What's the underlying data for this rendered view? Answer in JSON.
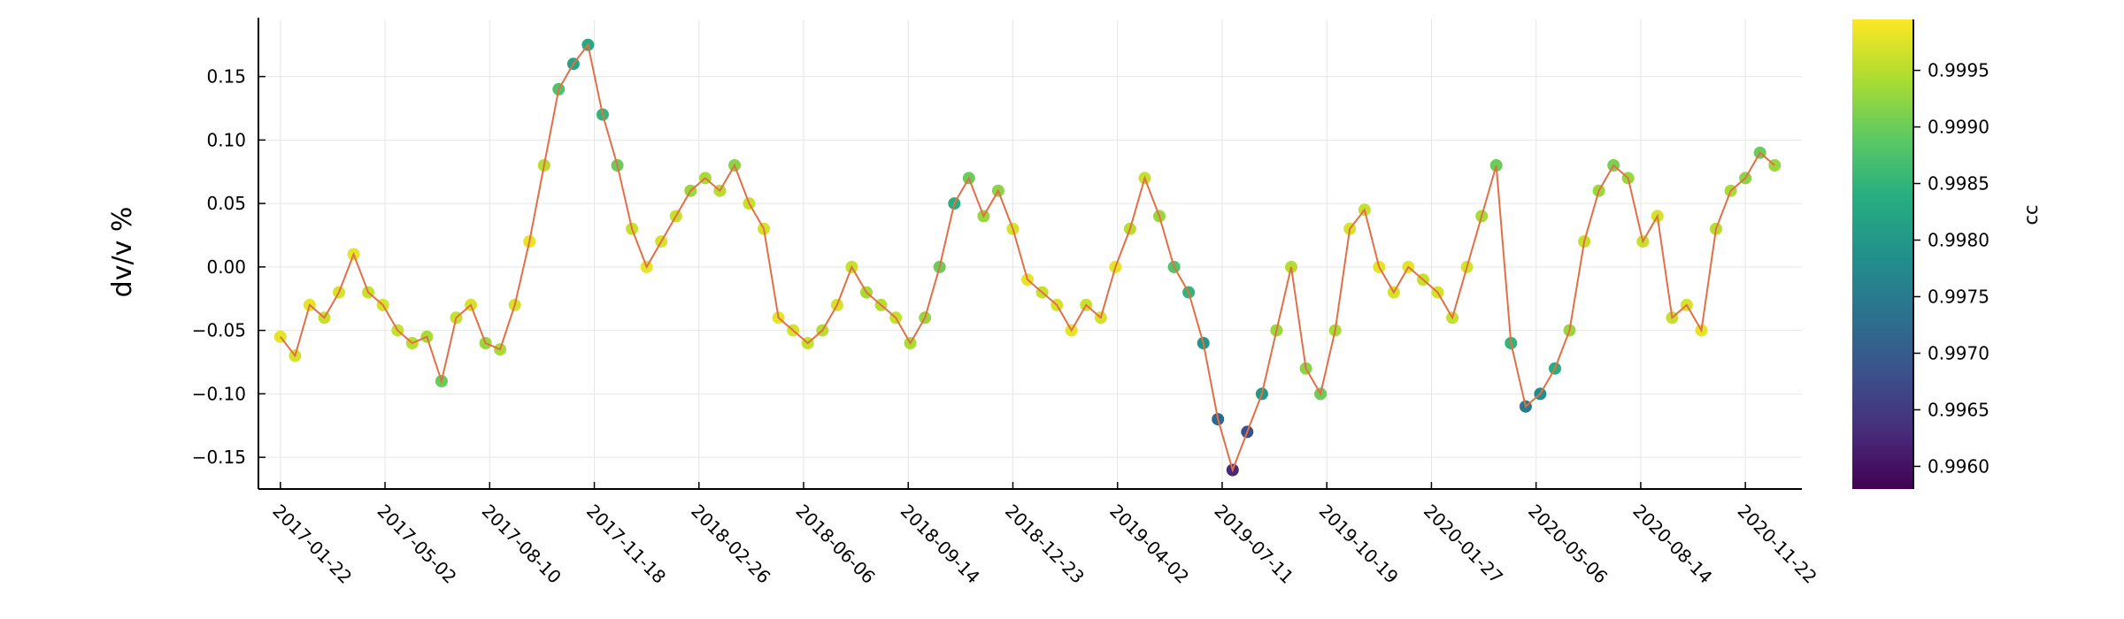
{
  "chart_data": {
    "type": "scatter",
    "title": "",
    "xlabel": "",
    "ylabel": "dv/v %",
    "grid": true,
    "legend": "none",
    "x_tick_labels": [
      "2017-01-22",
      "2017-05-02",
      "2017-08-10",
      "2017-11-18",
      "2018-02-26",
      "2018-06-06",
      "2018-09-14",
      "2018-12-23",
      "2019-04-02",
      "2019-07-11",
      "2019-10-19",
      "2020-01-27",
      "2020-05-06",
      "2020-08-14",
      "2020-11-22"
    ],
    "x_range": [
      "2017-01-01",
      "2021-01-15"
    ],
    "ylim": [
      -0.175,
      0.195
    ],
    "y_ticks": [
      -0.15,
      -0.1,
      -0.05,
      0.0,
      0.05,
      0.1,
      0.15
    ],
    "y_tick_labels": [
      "−0.15",
      "−0.10",
      "−0.05",
      "0.00",
      "0.05",
      "0.10",
      "0.15"
    ],
    "line_color": "#e26f46",
    "series": [
      {
        "x": [
          "2017-01-22",
          "2017-02-05",
          "2017-02-19",
          "2017-03-05",
          "2017-03-19",
          "2017-04-02",
          "2017-04-16",
          "2017-04-30",
          "2017-05-14",
          "2017-05-28",
          "2017-06-11",
          "2017-06-25",
          "2017-07-09",
          "2017-07-23",
          "2017-08-06",
          "2017-08-20",
          "2017-09-03",
          "2017-09-17",
          "2017-10-01",
          "2017-10-15",
          "2017-10-29",
          "2017-11-12",
          "2017-11-26",
          "2017-12-10",
          "2017-12-24",
          "2018-01-07",
          "2018-01-21",
          "2018-02-04",
          "2018-02-18",
          "2018-03-04",
          "2018-03-18",
          "2018-04-01",
          "2018-04-15",
          "2018-04-29",
          "2018-05-13",
          "2018-05-27",
          "2018-06-10",
          "2018-06-24",
          "2018-07-08",
          "2018-07-22",
          "2018-08-05",
          "2018-08-19",
          "2018-09-02",
          "2018-09-16",
          "2018-09-30",
          "2018-10-14",
          "2018-10-28",
          "2018-11-11",
          "2018-11-25",
          "2018-12-09",
          "2018-12-23",
          "2019-01-06",
          "2019-01-20",
          "2019-02-03",
          "2019-02-17",
          "2019-03-03",
          "2019-03-17",
          "2019-03-31",
          "2019-04-14",
          "2019-04-28",
          "2019-05-12",
          "2019-05-26",
          "2019-06-09",
          "2019-06-23",
          "2019-07-07",
          "2019-07-21",
          "2019-08-04",
          "2019-08-18",
          "2019-09-01",
          "2019-09-15",
          "2019-09-29",
          "2019-10-13",
          "2019-10-27",
          "2019-11-10",
          "2019-11-24",
          "2019-12-08",
          "2019-12-22",
          "2020-01-05",
          "2020-01-19",
          "2020-02-02",
          "2020-02-16",
          "2020-03-01",
          "2020-03-15",
          "2020-03-29",
          "2020-04-12",
          "2020-04-26",
          "2020-05-10",
          "2020-05-24",
          "2020-06-07",
          "2020-06-21",
          "2020-07-05",
          "2020-07-19",
          "2020-08-02",
          "2020-08-16",
          "2020-08-30",
          "2020-09-13",
          "2020-09-27",
          "2020-10-11",
          "2020-10-25",
          "2020-11-08",
          "2020-11-22",
          "2020-12-06",
          "2020-12-20"
        ],
        "y": [
          -0.055,
          -0.07,
          -0.03,
          -0.04,
          -0.02,
          0.01,
          -0.02,
          -0.03,
          -0.05,
          -0.06,
          -0.055,
          -0.09,
          -0.04,
          -0.03,
          -0.06,
          -0.065,
          -0.03,
          0.02,
          0.08,
          0.14,
          0.16,
          0.175,
          0.12,
          0.08,
          0.03,
          0.0,
          0.02,
          0.04,
          0.06,
          0.07,
          0.06,
          0.08,
          0.05,
          0.03,
          -0.04,
          -0.05,
          -0.06,
          -0.05,
          -0.03,
          0.0,
          -0.02,
          -0.03,
          -0.04,
          -0.06,
          -0.04,
          0.0,
          0.05,
          0.07,
          0.04,
          0.06,
          0.03,
          -0.01,
          -0.02,
          -0.03,
          -0.05,
          -0.03,
          -0.04,
          0.0,
          0.03,
          0.07,
          0.04,
          0.0,
          -0.02,
          -0.06,
          -0.12,
          -0.16,
          -0.13,
          -0.1,
          -0.05,
          0.0,
          -0.08,
          -0.1,
          -0.05,
          0.03,
          0.045,
          0.0,
          -0.02,
          0.0,
          -0.01,
          -0.02,
          -0.04,
          0.0,
          0.04,
          0.08,
          -0.06,
          -0.11,
          -0.1,
          -0.08,
          -0.05,
          0.02,
          0.06,
          0.08,
          0.07,
          0.02,
          0.04,
          -0.04,
          -0.03,
          -0.05,
          0.03,
          0.06,
          0.07,
          0.09,
          0.08
        ],
        "cc": [
          0.9998,
          0.9997,
          0.9998,
          0.9996,
          0.9997,
          0.9998,
          0.9996,
          0.9997,
          0.9996,
          0.9995,
          0.9994,
          0.999,
          0.9996,
          0.9997,
          0.9993,
          0.9994,
          0.9997,
          0.9998,
          0.9995,
          0.9988,
          0.9982,
          0.9983,
          0.9985,
          0.999,
          0.9996,
          0.9998,
          0.9997,
          0.9996,
          0.9993,
          0.9994,
          0.9995,
          0.9992,
          0.9996,
          0.9997,
          0.9998,
          0.9997,
          0.9996,
          0.9995,
          0.9997,
          0.9996,
          0.9994,
          0.9995,
          0.9996,
          0.9994,
          0.9993,
          0.999,
          0.9984,
          0.999,
          0.9993,
          0.9992,
          0.9997,
          0.9998,
          0.9996,
          0.9997,
          0.9998,
          0.9996,
          0.9997,
          0.9998,
          0.9995,
          0.9996,
          0.9993,
          0.9988,
          0.9985,
          0.998,
          0.9972,
          0.9963,
          0.9968,
          0.998,
          0.9993,
          0.9995,
          0.9992,
          0.999,
          0.9994,
          0.9997,
          0.9996,
          0.9998,
          0.9997,
          0.9998,
          0.9996,
          0.9997,
          0.9996,
          0.9997,
          0.9994,
          0.999,
          0.9985,
          0.9975,
          0.9978,
          0.9984,
          0.9993,
          0.9996,
          0.9993,
          0.9991,
          0.9993,
          0.9996,
          0.9997,
          0.9996,
          0.9997,
          0.9998,
          0.9995,
          0.9994,
          0.9992,
          0.999,
          0.9993
        ]
      }
    ],
    "colorbar": {
      "title": "cc",
      "colormap": "viridis",
      "range": [
        0.9958,
        0.99995
      ],
      "ticks": [
        0.996,
        0.9965,
        0.997,
        0.9975,
        0.998,
        0.9985,
        0.999,
        0.9995
      ],
      "tick_labels": [
        "0.9960",
        "0.9965",
        "0.9970",
        "0.9975",
        "0.9980",
        "0.9985",
        "0.9990",
        "0.9995"
      ]
    }
  }
}
